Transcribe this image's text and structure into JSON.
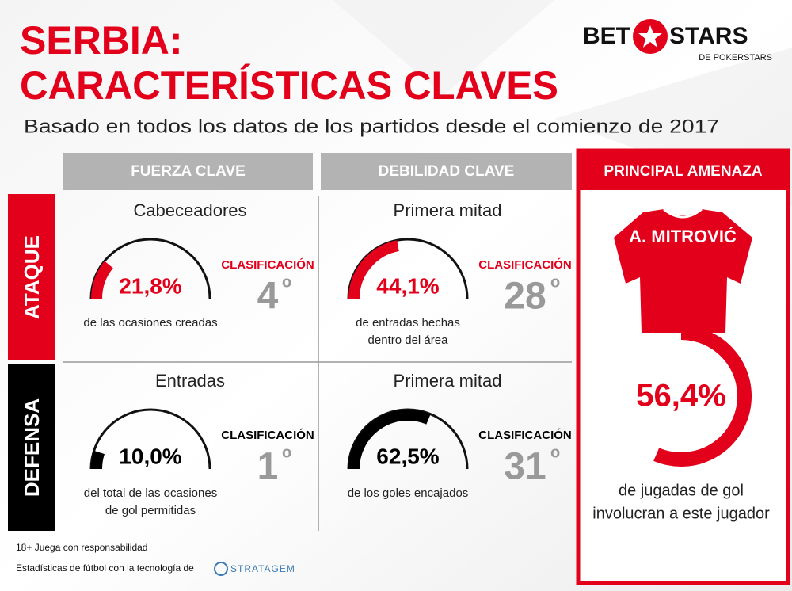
{
  "header": {
    "title_line1": "SERBIA:",
    "title_line2": "CARACTERÍSTICAS CLAVES",
    "subtitle": "Basado en todos los datos de los partidos desde el comienzo de 2017"
  },
  "logo": {
    "brand_left": "BET",
    "brand_right": "STARS",
    "tagline": "DE POKERSTARS"
  },
  "columns": [
    "FUERZA CLAVE",
    "DEBILIDAD CLAVE",
    "PRINCIPAL AMENAZA"
  ],
  "rows": [
    {
      "label": "ATAQUE",
      "color": "#e3001b"
    },
    {
      "label": "DEFENSA",
      "color": "#000000"
    }
  ],
  "cells": [
    {
      "row": 0,
      "col": 0,
      "title": "Cabeceadores",
      "value": {
        "value": 21.8,
        "label": "21,8%"
      },
      "description": [
        "de las ocasiones creadas"
      ],
      "rank_label": "CLASIFICACIÓN",
      "rank": 4,
      "rank_suffix": "o"
    },
    {
      "row": 0,
      "col": 1,
      "title": "Primera mitad",
      "value": {
        "value": 44.1,
        "label": "44,1%"
      },
      "description": [
        "de entradas hechas",
        "dentro del área"
      ],
      "rank_label": "CLASIFICACIÓN",
      "rank": 28,
      "rank_suffix": "o"
    },
    {
      "row": 1,
      "col": 0,
      "title": "Entradas",
      "value": {
        "value": 10.0,
        "label": "10,0%"
      },
      "description": [
        "del total de las ocasiones",
        "de gol permitidas"
      ],
      "rank_label": "CLASIFICACIÓN",
      "rank": 1,
      "rank_suffix": "o"
    },
    {
      "row": 1,
      "col": 1,
      "title": "Primera mitad",
      "value": {
        "value": 62.5,
        "label": "62,5%"
      },
      "description": [
        "de los goles encajados"
      ],
      "rank_label": "CLASIFICACIÓN",
      "rank": 31,
      "rank_suffix": "o"
    }
  ],
  "threat": {
    "player": "A. MITROVIĆ",
    "value": {
      "value": 56.4,
      "label": "56,4%"
    },
    "description": [
      "de jugadas de gol",
      "involucran a este jugador"
    ]
  },
  "footer": {
    "note": "18+ Juega con responsabilidad",
    "credit": "Estadísticas de fútbol con la tecnología de",
    "credit_brand": "STRATAGEM"
  }
}
